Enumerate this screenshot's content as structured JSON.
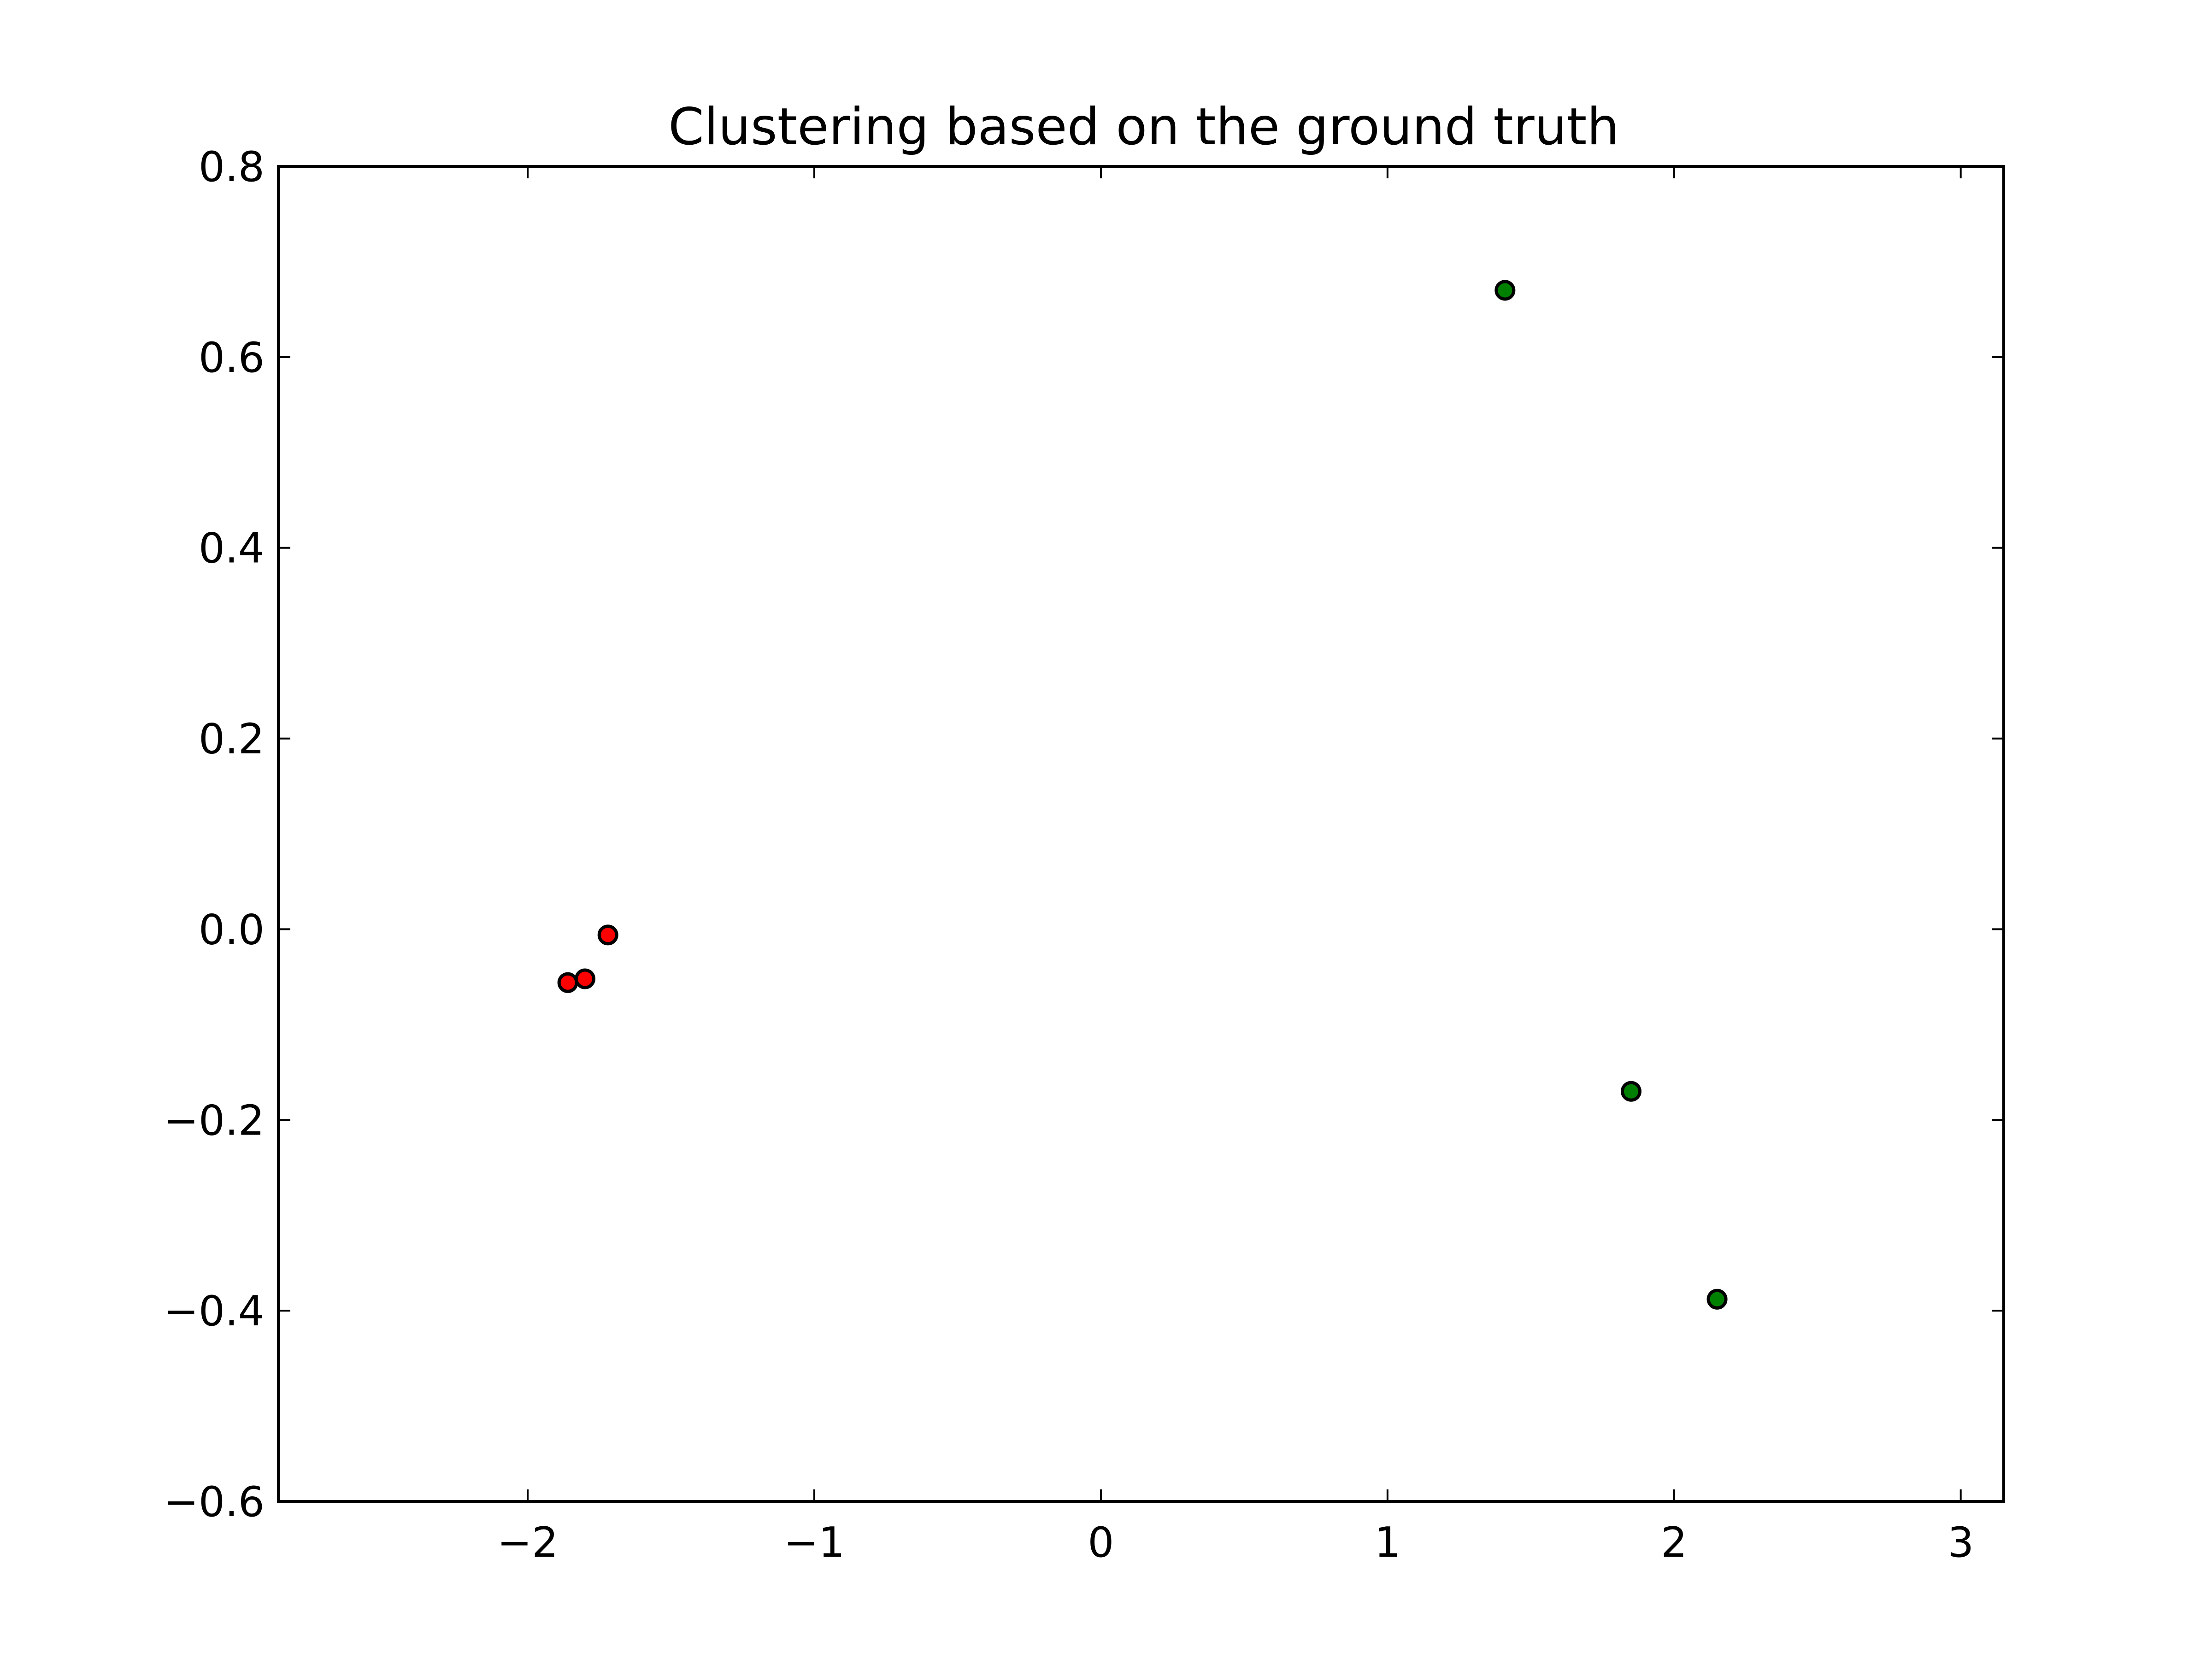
{
  "chart_data": {
    "type": "scatter",
    "title": "Clustering based on the ground truth",
    "xlabel": "",
    "ylabel": "",
    "xlim": [
      -2.87,
      3.15
    ],
    "ylim": [
      -0.6,
      0.8
    ],
    "xticks": [
      -2,
      -1,
      0,
      1,
      2,
      3
    ],
    "xtick_labels": [
      "−2",
      "−1",
      "0",
      "1",
      "2",
      "3"
    ],
    "yticks": [
      -0.6,
      -0.4,
      -0.2,
      0.0,
      0.2,
      0.4,
      0.6,
      0.8
    ],
    "ytick_labels": [
      "−0.6",
      "−0.4",
      "−0.2",
      "0.0",
      "0.2",
      "0.4",
      "0.6",
      "0.8"
    ],
    "grid": false,
    "series": [
      {
        "color": "#ff0000",
        "points": [
          {
            "x": -1.86,
            "y": -0.056
          },
          {
            "x": -1.8,
            "y": -0.052
          },
          {
            "x": -1.72,
            "y": -0.006
          }
        ]
      },
      {
        "color": "#008000",
        "points": [
          {
            "x": 1.41,
            "y": 0.67
          },
          {
            "x": 1.85,
            "y": -0.17
          },
          {
            "x": 2.15,
            "y": -0.388
          }
        ]
      }
    ]
  }
}
